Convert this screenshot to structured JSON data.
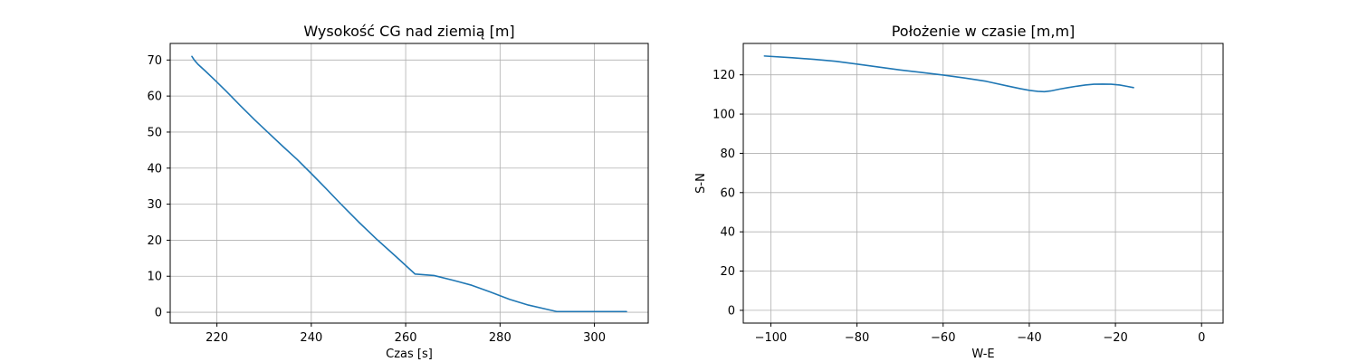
{
  "chart_data": [
    {
      "type": "line",
      "title": "Wysokość CG nad ziemią [m]",
      "xlabel": "Czas [s]",
      "ylabel": "",
      "xlim": [
        210.1,
        311.4
      ],
      "ylim": [
        -3.0,
        74.6
      ],
      "xticks": [
        220,
        240,
        260,
        280,
        300
      ],
      "yticks": [
        0,
        10,
        20,
        30,
        40,
        50,
        60,
        70
      ],
      "xtick_labels": [
        "220",
        "240",
        "260",
        "280",
        "300"
      ],
      "ytick_labels": [
        "0",
        "10",
        "20",
        "30",
        "40",
        "50",
        "60",
        "70"
      ],
      "grid": true,
      "color": "#1f77b4",
      "series": [
        {
          "x": [
            214.7,
            215.2,
            216.0,
            217.5,
            219.5,
            222.0,
            225.0,
            228.0,
            231.0,
            234.0,
            237.0,
            240.0,
            243.0,
            246.0,
            250.0,
            254.0,
            258.0,
            262.0,
            266.0,
            270.0,
            274.0,
            278.0,
            282.0,
            286.0,
            290.0,
            292.0,
            295.0,
            300.0,
            306.8
          ],
          "y": [
            71.0,
            70.0,
            68.8,
            67.0,
            64.5,
            61.3,
            57.3,
            53.4,
            49.7,
            46.0,
            42.4,
            38.5,
            34.5,
            30.4,
            25.1,
            20.1,
            15.4,
            10.6,
            10.2,
            8.9,
            7.5,
            5.6,
            3.6,
            2.0,
            0.8,
            0.2,
            0.2,
            0.2,
            0.2
          ]
        }
      ]
    },
    {
      "type": "line",
      "title": "Położenie w czasie [m,m]",
      "xlabel": "W-E",
      "ylabel": "S-N",
      "xlim": [
        -106.4,
        5.0
      ],
      "ylim": [
        -6.5,
        136.0
      ],
      "xticks": [
        -100,
        -80,
        -60,
        -40,
        -20,
        0
      ],
      "yticks": [
        0,
        20,
        40,
        60,
        80,
        100,
        120
      ],
      "xtick_labels": [
        "−100",
        "−80",
        "−60",
        "−40",
        "−20",
        "0"
      ],
      "ytick_labels": [
        "0",
        "20",
        "40",
        "60",
        "80",
        "100",
        "120"
      ],
      "grid": true,
      "color": "#1f77b4",
      "series": [
        {
          "x": [
            -101.5,
            -95.0,
            -90.0,
            -85.0,
            -80.0,
            -75.0,
            -70.0,
            -65.0,
            -60.0,
            -55.0,
            -50.0,
            -45.0,
            -42.0,
            -40.0,
            -38.0,
            -36.5,
            -35.0,
            -33.0,
            -31.0,
            -29.0,
            -27.0,
            -25.0,
            -23.0,
            -21.0,
            -19.0,
            -17.5,
            -15.8
          ],
          "y": [
            129.6,
            128.7,
            127.9,
            126.9,
            125.5,
            124.0,
            122.5,
            121.2,
            119.9,
            118.4,
            116.7,
            114.3,
            112.9,
            112.1,
            111.6,
            111.4,
            111.8,
            112.7,
            113.5,
            114.2,
            114.8,
            115.2,
            115.3,
            115.2,
            114.8,
            114.2,
            113.5
          ]
        }
      ]
    }
  ]
}
